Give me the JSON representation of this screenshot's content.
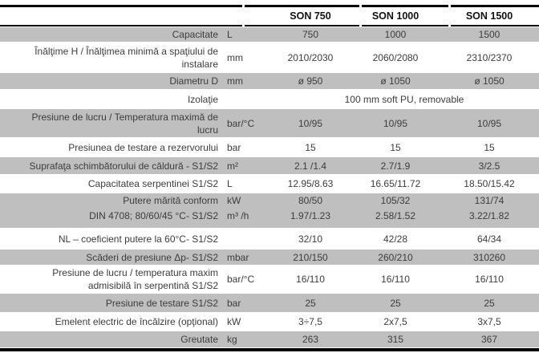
{
  "table": {
    "columns": [
      "SON 750",
      "SON 1000",
      "SON 1500"
    ],
    "rows": [
      {
        "label": "Capacitate",
        "unit": "L",
        "values": [
          "750",
          "1000",
          "1500"
        ]
      },
      {
        "label": "Înălţime H / Înălţimea minimă a spaţiului de\ninstalare",
        "unit": "mm",
        "values": [
          "2010/2030",
          "2060/2080",
          "2310/2370"
        ]
      },
      {
        "label": "Diametru D",
        "unit": "mm",
        "values": [
          "ø 950",
          "ø 1050",
          "ø 1050"
        ]
      },
      {
        "label": "Izolaţie",
        "unit": "",
        "span_value": "100 mm soft PU, removable"
      },
      {
        "label": "Presiune de lucru / Temperatura maximă de\nlucru",
        "unit": "bar/°C",
        "values": [
          "10/95",
          "10/95",
          "10/95"
        ]
      },
      {
        "label": "Presiunea de testare a rezervorului",
        "unit": "bar",
        "values": [
          "15",
          "15",
          "15"
        ]
      },
      {
        "label": "Suprafaţa schimbătorului de căldură - S1/S2",
        "unit": "m²",
        "values": [
          "2.1 /1.4",
          "2.7/1.9",
          "3/2.5"
        ]
      },
      {
        "label": "Capacitatea serpentinei S1/S2",
        "unit": "L",
        "values": [
          "12.95/8.63",
          "16.65/11.72",
          "18.50/15.42"
        ]
      },
      {
        "label": "Putere mărită conform\nDIN 4708; 80/60/45 °C- S1/S2",
        "unit": "kW\nm³ /h",
        "values": [
          "80/50\n1.97/1.23",
          "105/32\n2.58/1.52",
          "131/74\n3.22/1.82"
        ]
      },
      {
        "label": "NL – coeficient putere la 60°C- S1/S2",
        "unit": "",
        "values": [
          "32/10",
          "42/28",
          "64/34"
        ]
      },
      {
        "label": "Scăderi de presiune Δp- S1/S2",
        "unit": "mbar",
        "values": [
          "210/150",
          "260/210",
          "310260"
        ]
      },
      {
        "label": "Presiune de lucru / temperatura maxim\nadmisibilă în serpentină S1/S2",
        "unit": "bar/°C",
        "values": [
          "16/110",
          "16/110",
          "16/110"
        ]
      },
      {
        "label": "Presiune de testare S1/S2",
        "unit": "bar",
        "values": [
          "25",
          "25",
          "25"
        ]
      },
      {
        "label": "Emelent electric de încălzire (opţional)",
        "unit": "kW",
        "values": [
          "3÷7,5",
          "2x7,5",
          "3x7,5"
        ]
      },
      {
        "label": "Greutate",
        "unit": "kg",
        "values": [
          "263",
          "315",
          "367"
        ]
      }
    ],
    "colors": {
      "row_shade": "#bfbfbf",
      "rule": "#000000",
      "text": "#3c3c3c"
    }
  }
}
